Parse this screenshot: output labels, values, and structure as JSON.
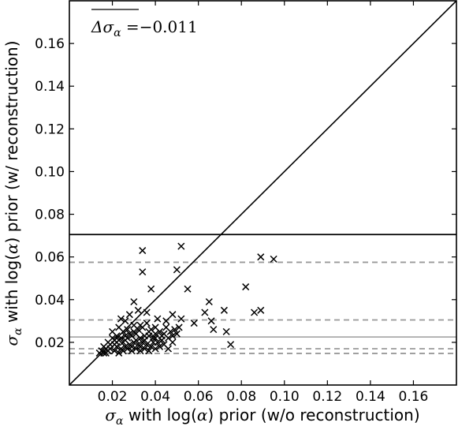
{
  "chart_data": {
    "type": "scatter",
    "xlabel": {
      "symbol": "σ",
      "subscript": "α",
      "text_before": " with log(",
      "alpha": "α",
      "text_after": ") prior (w/o reconstruction)"
    },
    "ylabel": {
      "symbol": "σ",
      "subscript": "α",
      "text_before": " with log(",
      "alpha": "α",
      "text_after": ") prior (w/ reconstruction)"
    },
    "xlim": [
      0.0,
      0.18
    ],
    "ylim": [
      0.0,
      0.18
    ],
    "xticks": [
      0.02,
      0.04,
      0.06,
      0.08,
      0.1,
      0.12,
      0.14,
      0.16
    ],
    "xtick_labels": [
      "0.02",
      "0.04",
      "0.06",
      "0.08",
      "0.10",
      "0.12",
      "0.14",
      "0.16"
    ],
    "yticks": [
      0.02,
      0.04,
      0.06,
      0.08,
      0.1,
      0.12,
      0.14,
      0.16
    ],
    "ytick_labels": [
      "0.02",
      "0.04",
      "0.06",
      "0.08",
      "0.10",
      "0.12",
      "0.14",
      "0.16"
    ],
    "annotation": {
      "symbol": "Δσ",
      "subscript": "α",
      "equals": " =",
      "value": "−0.011"
    },
    "reference_lines": {
      "diagonal": true,
      "solid_black_y": 0.0705,
      "solid_gray_y": 0.0225,
      "dashed_gray_y": [
        0.0575,
        0.0305,
        0.017,
        0.0148
      ]
    },
    "colors": {
      "points": "#000000",
      "black_line": "#000000",
      "gray_line": "#aaaaaa",
      "dashed_line": "#999999"
    },
    "series": [
      {
        "marker": "x",
        "points": [
          [
            0.034,
            0.063
          ],
          [
            0.052,
            0.065
          ],
          [
            0.034,
            0.053
          ],
          [
            0.05,
            0.054
          ],
          [
            0.089,
            0.06
          ],
          [
            0.095,
            0.059
          ],
          [
            0.082,
            0.046
          ],
          [
            0.055,
            0.045
          ],
          [
            0.038,
            0.045
          ],
          [
            0.065,
            0.039
          ],
          [
            0.03,
            0.039
          ],
          [
            0.072,
            0.035
          ],
          [
            0.086,
            0.034
          ],
          [
            0.089,
            0.035
          ],
          [
            0.063,
            0.034
          ],
          [
            0.048,
            0.033
          ],
          [
            0.052,
            0.031
          ],
          [
            0.041,
            0.031
          ],
          [
            0.026,
            0.03
          ],
          [
            0.024,
            0.031
          ],
          [
            0.028,
            0.033
          ],
          [
            0.032,
            0.035
          ],
          [
            0.036,
            0.034
          ],
          [
            0.045,
            0.03
          ],
          [
            0.058,
            0.029
          ],
          [
            0.066,
            0.03
          ],
          [
            0.067,
            0.026
          ],
          [
            0.073,
            0.025
          ],
          [
            0.075,
            0.019
          ],
          [
            0.049,
            0.026
          ],
          [
            0.044,
            0.024
          ],
          [
            0.04,
            0.027
          ],
          [
            0.037,
            0.025
          ],
          [
            0.033,
            0.028
          ],
          [
            0.03,
            0.028
          ],
          [
            0.027,
            0.026
          ],
          [
            0.025,
            0.025
          ],
          [
            0.023,
            0.027
          ],
          [
            0.022,
            0.023
          ],
          [
            0.02,
            0.022
          ],
          [
            0.018,
            0.02
          ],
          [
            0.016,
            0.018
          ],
          [
            0.015,
            0.016
          ],
          [
            0.017,
            0.015
          ],
          [
            0.019,
            0.017
          ],
          [
            0.021,
            0.019
          ],
          [
            0.023,
            0.021
          ],
          [
            0.025,
            0.02
          ],
          [
            0.027,
            0.022
          ],
          [
            0.029,
            0.023
          ],
          [
            0.031,
            0.024
          ],
          [
            0.033,
            0.022
          ],
          [
            0.035,
            0.021
          ],
          [
            0.037,
            0.023
          ],
          [
            0.039,
            0.022
          ],
          [
            0.041,
            0.02
          ],
          [
            0.043,
            0.021
          ],
          [
            0.046,
            0.022
          ],
          [
            0.048,
            0.023
          ],
          [
            0.05,
            0.024
          ],
          [
            0.02,
            0.025
          ],
          [
            0.022,
            0.018
          ],
          [
            0.024,
            0.017
          ],
          [
            0.026,
            0.018
          ],
          [
            0.028,
            0.019
          ],
          [
            0.03,
            0.02
          ],
          [
            0.032,
            0.019
          ],
          [
            0.034,
            0.02
          ],
          [
            0.036,
            0.019
          ],
          [
            0.038,
            0.018
          ],
          [
            0.04,
            0.017
          ],
          [
            0.042,
            0.018
          ],
          [
            0.044,
            0.019
          ],
          [
            0.046,
            0.017
          ],
          [
            0.048,
            0.02
          ],
          [
            0.018,
            0.016
          ],
          [
            0.016,
            0.015
          ],
          [
            0.014,
            0.015
          ],
          [
            0.021,
            0.016
          ],
          [
            0.023,
            0.015
          ],
          [
            0.025,
            0.016
          ],
          [
            0.027,
            0.017
          ],
          [
            0.029,
            0.016
          ],
          [
            0.031,
            0.017
          ],
          [
            0.033,
            0.018
          ],
          [
            0.035,
            0.017
          ],
          [
            0.037,
            0.016
          ],
          [
            0.026,
            0.021
          ],
          [
            0.028,
            0.024
          ],
          [
            0.03,
            0.025
          ],
          [
            0.032,
            0.026
          ],
          [
            0.034,
            0.027
          ],
          [
            0.036,
            0.029
          ],
          [
            0.038,
            0.026
          ],
          [
            0.04,
            0.024
          ],
          [
            0.042,
            0.025
          ],
          [
            0.024,
            0.022
          ],
          [
            0.026,
            0.023
          ],
          [
            0.031,
            0.021
          ],
          [
            0.035,
            0.023
          ],
          [
            0.039,
            0.02
          ],
          [
            0.043,
            0.023
          ],
          [
            0.047,
            0.025
          ],
          [
            0.051,
            0.027
          ],
          [
            0.021,
            0.021
          ],
          [
            0.019,
            0.019
          ],
          [
            0.017,
            0.017
          ],
          [
            0.022,
            0.02
          ],
          [
            0.029,
            0.018
          ],
          [
            0.033,
            0.016
          ],
          [
            0.04,
            0.022
          ],
          [
            0.045,
            0.027
          ]
        ]
      }
    ]
  }
}
